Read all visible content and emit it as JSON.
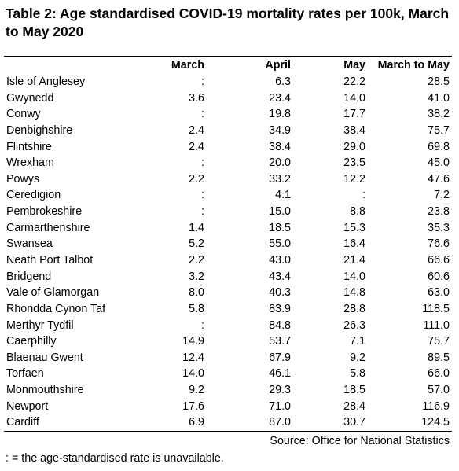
{
  "title": "Table 2: Age standardised COVID-19 mortality rates per 100k, March to May 2020",
  "columns": [
    "",
    "March",
    "April",
    "May",
    "March to May"
  ],
  "rows": [
    [
      "Isle of Anglesey",
      ":",
      "6.3",
      "22.2",
      "28.5"
    ],
    [
      "Gwynedd",
      "3.6",
      "23.4",
      "14.0",
      "41.0"
    ],
    [
      "Conwy",
      ":",
      "19.8",
      "17.7",
      "38.2"
    ],
    [
      "Denbighshire",
      "2.4",
      "34.9",
      "38.4",
      "75.7"
    ],
    [
      "Flintshire",
      "2.4",
      "38.4",
      "29.0",
      "69.8"
    ],
    [
      "Wrexham",
      ":",
      "20.0",
      "23.5",
      "45.0"
    ],
    [
      "Powys",
      "2.2",
      "33.2",
      "12.2",
      "47.6"
    ],
    [
      "Ceredigion",
      ":",
      "4.1",
      ":",
      "7.2"
    ],
    [
      "Pembrokeshire",
      ":",
      "15.0",
      "8.8",
      "23.8"
    ],
    [
      "Carmarthenshire",
      "1.4",
      "18.5",
      "15.3",
      "35.3"
    ],
    [
      "Swansea",
      "5.2",
      "55.0",
      "16.4",
      "76.6"
    ],
    [
      "Neath Port Talbot",
      "2.2",
      "43.0",
      "21.4",
      "66.6"
    ],
    [
      "Bridgend",
      "3.2",
      "43.4",
      "14.0",
      "60.6"
    ],
    [
      "Vale of Glamorgan",
      "8.0",
      "40.3",
      "14.8",
      "63.0"
    ],
    [
      "Rhondda Cynon Taf",
      "5.8",
      "83.9",
      "28.8",
      "118.5"
    ],
    [
      "Merthyr Tydfil",
      ":",
      "84.8",
      "26.3",
      "111.0"
    ],
    [
      "Caerphilly",
      "14.9",
      "53.7",
      "7.1",
      "75.7"
    ],
    [
      "Blaenau Gwent",
      "12.4",
      "67.9",
      "9.2",
      "89.5"
    ],
    [
      "Torfaen",
      "14.0",
      "46.1",
      "5.8",
      "66.0"
    ],
    [
      "Monmouthshire",
      "9.2",
      "29.3",
      "18.5",
      "57.0"
    ],
    [
      "Newport",
      "17.6",
      "71.0",
      "28.4",
      "116.9"
    ],
    [
      "Cardiff",
      "6.9",
      "87.0",
      "30.7",
      "124.5"
    ]
  ],
  "source": "Source: Office for National Statistics",
  "note": ": = the age-standardised rate is unavailable."
}
